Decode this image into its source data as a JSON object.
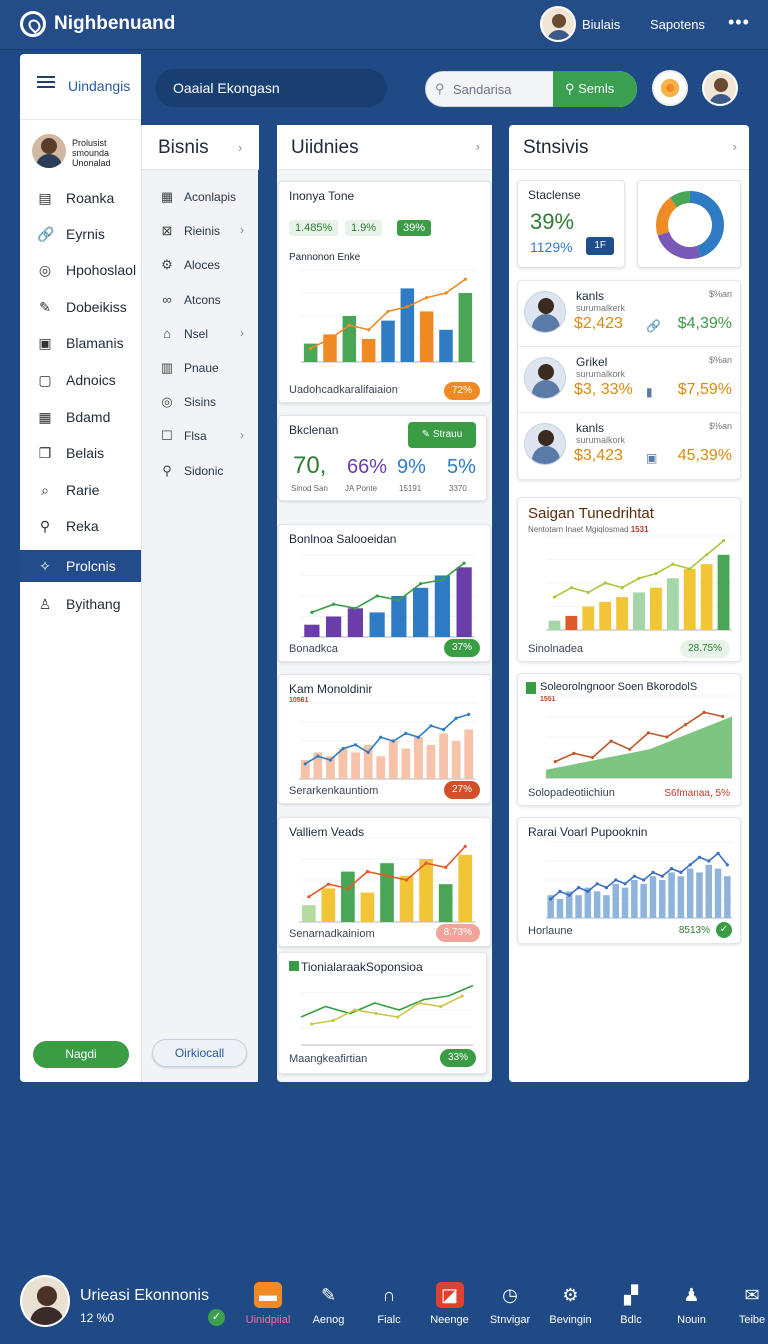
{
  "app": {
    "title": "Nighbenuand"
  },
  "topbar": {
    "user1": "Biulais",
    "user2": "Sapotens",
    "more": "•••"
  },
  "sidebar": {
    "header": "Uindangis",
    "user_caption": "Prolusist smounda Unonalad",
    "items": [
      {
        "label": "Roanka",
        "icon": "file-icon",
        "glyph": "▤"
      },
      {
        "label": "Eyrnis",
        "icon": "link-icon",
        "glyph": "🔗"
      },
      {
        "label": "Hpohoslaol",
        "icon": "globe-icon",
        "glyph": "◎"
      },
      {
        "label": "Dobeikiss",
        "icon": "pencil-icon",
        "glyph": "✎"
      },
      {
        "label": "Blamanis",
        "icon": "card-icon",
        "glyph": "▣"
      },
      {
        "label": "Adnoics",
        "icon": "clipboard-icon",
        "glyph": "▢"
      },
      {
        "label": "Bdamd",
        "icon": "grid-icon",
        "glyph": "▦"
      },
      {
        "label": "Belais",
        "icon": "copy-icon",
        "glyph": "❐"
      },
      {
        "label": "Rarie",
        "icon": "tag-icon",
        "glyph": "⌕"
      },
      {
        "label": "Reka",
        "icon": "search-icon",
        "glyph": "⚲"
      },
      {
        "label": "Prolcnis",
        "icon": "puzzle-icon",
        "glyph": "✧"
      },
      {
        "label": "Byithang",
        "icon": "user-icon",
        "glyph": "♙"
      }
    ],
    "button": "Nagdi"
  },
  "submenu": {
    "title": "Bisnis",
    "items": [
      {
        "label": "Aconlapis",
        "icon": "calendar-icon",
        "glyph": "▦",
        "chevron": ""
      },
      {
        "label": "Rieinis",
        "icon": "image-icon",
        "glyph": "⊠",
        "chevron": "›"
      },
      {
        "label": "Aloces",
        "icon": "gear-icon",
        "glyph": "⚙",
        "chevron": ""
      },
      {
        "label": "Atcons",
        "icon": "link-icon",
        "glyph": "∞",
        "chevron": ""
      },
      {
        "label": "Nsel",
        "icon": "home-icon",
        "glyph": "⌂",
        "chevron": "›"
      },
      {
        "label": "Pnaue",
        "icon": "building-icon",
        "glyph": "▥",
        "chevron": ""
      },
      {
        "label": "Sisins",
        "icon": "target-icon",
        "glyph": "◎",
        "chevron": ""
      },
      {
        "label": "Flsa",
        "icon": "square-icon",
        "glyph": "☐",
        "chevron": "›"
      },
      {
        "label": "Sidonic",
        "icon": "pin-icon",
        "glyph": "⚲",
        "chevron": ""
      }
    ],
    "button": "Oirkiocall"
  },
  "search": {
    "main": "Oaaial Ekongasn",
    "field": "Sandarisa",
    "button": "Semls"
  },
  "col1": {
    "title": "Uiidnies",
    "top_card": {
      "title": "Inonya Tone",
      "pill1": "1.485%",
      "pill2": "1.9%",
      "pill3": "39%",
      "chart_title": "Pannonon Enke",
      "footer": "Uadohcadkaralifaiaion",
      "footer_pill": "72%"
    },
    "stats_card": {
      "title": "Bkclenan",
      "button": "Strauu",
      "v1": "70,",
      "v2": "66%",
      "v3": "9%",
      "v4": "5%",
      "l1": "Sinod San",
      "l2": "JA Ponte",
      "l3": "15191",
      "l4": "3370"
    },
    "card3": {
      "title": "Bonlnoa Salooeidan",
      "footer": "Bonadkca",
      "pill": "37%"
    },
    "card4": {
      "title": "Kam Monoldinir",
      "sub": "10561",
      "footer": "Serarkenkauntiom",
      "pill": "27%"
    },
    "card5": {
      "title": "Valliem Veads",
      "footer": "Senarnadkainiom",
      "pill": "8.73%"
    },
    "card6": {
      "title": "TionialaraakSoponsioa",
      "footer": "Maangkeafirtian",
      "pill": "33%"
    }
  },
  "col2": {
    "title": "Stnsivis",
    "stat": {
      "title": "Staclense",
      "big": "39%",
      "small": "1129%",
      "badge": "1F"
    },
    "people": [
      {
        "name": "kanls",
        "sub": "surumalkerk",
        "top": "$%an",
        "v1": "$2,423",
        "v2": "$4,39%",
        "v2color": "#3a9c45",
        "icon": "🔗"
      },
      {
        "name": "Grikel",
        "sub": "surumalkork",
        "top": "$%an",
        "v1": "$3, 33%",
        "v2": "$7,59%",
        "v2color": "#d98a12",
        "icon": "▮"
      },
      {
        "name": "kanls",
        "sub": "surumalkork",
        "top": "$%an",
        "v1": "$3,423",
        "v2": "45,39%",
        "v2color": "#d98a12",
        "icon": "▣"
      }
    ],
    "card_a": {
      "title": "Saigan Tunedrihtat",
      "sub": "Nentotarn Inaet Mgiqlosmad",
      "sub2": "1531",
      "footer": "Sinolnadea",
      "pill": "28.75%"
    },
    "card_b": {
      "title": "Soleorolngnoor Soen BkorodolS",
      "sub": "1551",
      "footer": "Solopadeotiichiun",
      "pill": "S6fmanaa, 5%"
    },
    "card_c": {
      "title": "Rarai Voarl Pupooknin",
      "footer": "Horlaune",
      "pill": "8513%"
    }
  },
  "bottom": {
    "name": "Urieasi Ekonnonis",
    "sub": "12 %0",
    "nav": [
      {
        "label": "Uinidpiial",
        "icon": "folder-icon",
        "glyph": "▬",
        "color": "#f08a24"
      },
      {
        "label": "Aenog",
        "icon": "chart-icon",
        "glyph": "✎",
        "color": ""
      },
      {
        "label": "Fialc",
        "icon": "headphones-icon",
        "glyph": "∩",
        "color": ""
      },
      {
        "label": "Neenge",
        "icon": "flag-icon",
        "glyph": "◪",
        "color": "#e04030"
      },
      {
        "label": "Stnvigar",
        "icon": "compass-icon",
        "glyph": "◷",
        "color": ""
      },
      {
        "label": "Bevingin",
        "icon": "gear-icon",
        "glyph": "⚙",
        "color": ""
      },
      {
        "label": "Bdlc",
        "icon": "bookmark-icon",
        "glyph": "▞",
        "color": ""
      },
      {
        "label": "Nouin",
        "icon": "bell-icon",
        "glyph": "♟",
        "color": ""
      },
      {
        "label": "Teibe",
        "icon": "mail-icon",
        "glyph": "✉",
        "color": ""
      }
    ]
  },
  "chart_data": [
    {
      "type": "bar",
      "name": "Pannonon Enke",
      "categories": [
        "1",
        "2",
        "3",
        "4",
        "5",
        "6",
        "7",
        "8",
        "9"
      ],
      "values": [
        20,
        30,
        50,
        25,
        45,
        80,
        55,
        35,
        75
      ],
      "line": [
        15,
        25,
        40,
        35,
        55,
        60,
        70,
        75,
        90
      ],
      "ylim": [
        0,
        100
      ]
    },
    {
      "type": "bar",
      "name": "Bonlnoa Salooeidan",
      "categories": [
        "1",
        "2",
        "3",
        "4",
        "5",
        "6",
        "7",
        "8"
      ],
      "values": [
        15,
        25,
        35,
        30,
        50,
        60,
        75,
        85
      ],
      "line": [
        30,
        40,
        35,
        50,
        45,
        65,
        70,
        90
      ],
      "ylim": [
        0,
        100
      ]
    },
    {
      "type": "bar",
      "name": "Kam Monoldinir",
      "categories": [
        "1",
        "2",
        "3",
        "4",
        "5",
        "6",
        "7",
        "8",
        "9",
        "10",
        "11",
        "12",
        "13",
        "14"
      ],
      "values": [
        25,
        35,
        30,
        40,
        35,
        45,
        30,
        50,
        40,
        55,
        45,
        60,
        50,
        65
      ],
      "line": [
        20,
        30,
        25,
        40,
        45,
        35,
        55,
        50,
        60,
        55,
        70,
        65,
        80,
        85
      ],
      "ylim": [
        0,
        100
      ]
    },
    {
      "type": "bar",
      "name": "Valliem Veads",
      "categories": [
        "1",
        "2",
        "3",
        "4",
        "5",
        "6",
        "7",
        "8",
        "9"
      ],
      "values": [
        20,
        40,
        60,
        35,
        70,
        55,
        75,
        45,
        80
      ],
      "line": [
        30,
        45,
        40,
        60,
        55,
        50,
        70,
        65,
        90
      ],
      "ylim": [
        0,
        100
      ]
    },
    {
      "type": "line",
      "name": "TionialaraakSoponsioa",
      "x": [
        1,
        2,
        3,
        4,
        5,
        6,
        7,
        8
      ],
      "values": [
        40,
        55,
        45,
        60,
        50,
        65,
        70,
        85
      ],
      "line": [
        30,
        35,
        50,
        45,
        40,
        60,
        55,
        70
      ],
      "ylim": [
        0,
        100
      ]
    },
    {
      "type": "pie",
      "name": "Staclense",
      "values": [
        45,
        25,
        20,
        10
      ],
      "colors": [
        "#2f7cc4",
        "#7a58b5",
        "#f08a24",
        "#4aa556"
      ]
    },
    {
      "type": "bar",
      "name": "Saigan Tunedrihtat",
      "categories": [
        "1",
        "2",
        "3",
        "4",
        "5",
        "6",
        "7",
        "8",
        "9",
        "10",
        "11"
      ],
      "values": [
        10,
        15,
        25,
        30,
        35,
        40,
        45,
        55,
        65,
        70,
        80
      ],
      "line": [
        35,
        45,
        40,
        50,
        45,
        55,
        60,
        70,
        65,
        80,
        95
      ],
      "ylim": [
        0,
        100
      ]
    },
    {
      "type": "area",
      "name": "Soleorolngnoor Soen BkorodolS",
      "x": [
        1,
        2,
        3,
        4,
        5,
        6,
        7,
        8,
        9,
        10
      ],
      "values": [
        10,
        15,
        20,
        25,
        30,
        35,
        45,
        55,
        65,
        75
      ],
      "line": [
        20,
        30,
        25,
        45,
        35,
        55,
        50,
        65,
        80,
        75
      ],
      "ylim": [
        0,
        100
      ]
    },
    {
      "type": "bar",
      "name": "Rarai Voarl Pupooknin",
      "categories": [
        "1",
        "2",
        "3",
        "4",
        "5",
        "6",
        "7",
        "8",
        "9",
        "10",
        "11",
        "12",
        "13",
        "14",
        "15",
        "16",
        "17",
        "18",
        "19",
        "20"
      ],
      "values": [
        30,
        25,
        35,
        30,
        40,
        35,
        30,
        45,
        40,
        50,
        45,
        55,
        50,
        60,
        55,
        65,
        60,
        70,
        65,
        55
      ],
      "line": [
        25,
        35,
        30,
        40,
        35,
        45,
        40,
        50,
        45,
        55,
        50,
        60,
        55,
        65,
        60,
        70,
        80,
        75,
        85,
        70
      ],
      "ylim": [
        0,
        100
      ]
    }
  ]
}
